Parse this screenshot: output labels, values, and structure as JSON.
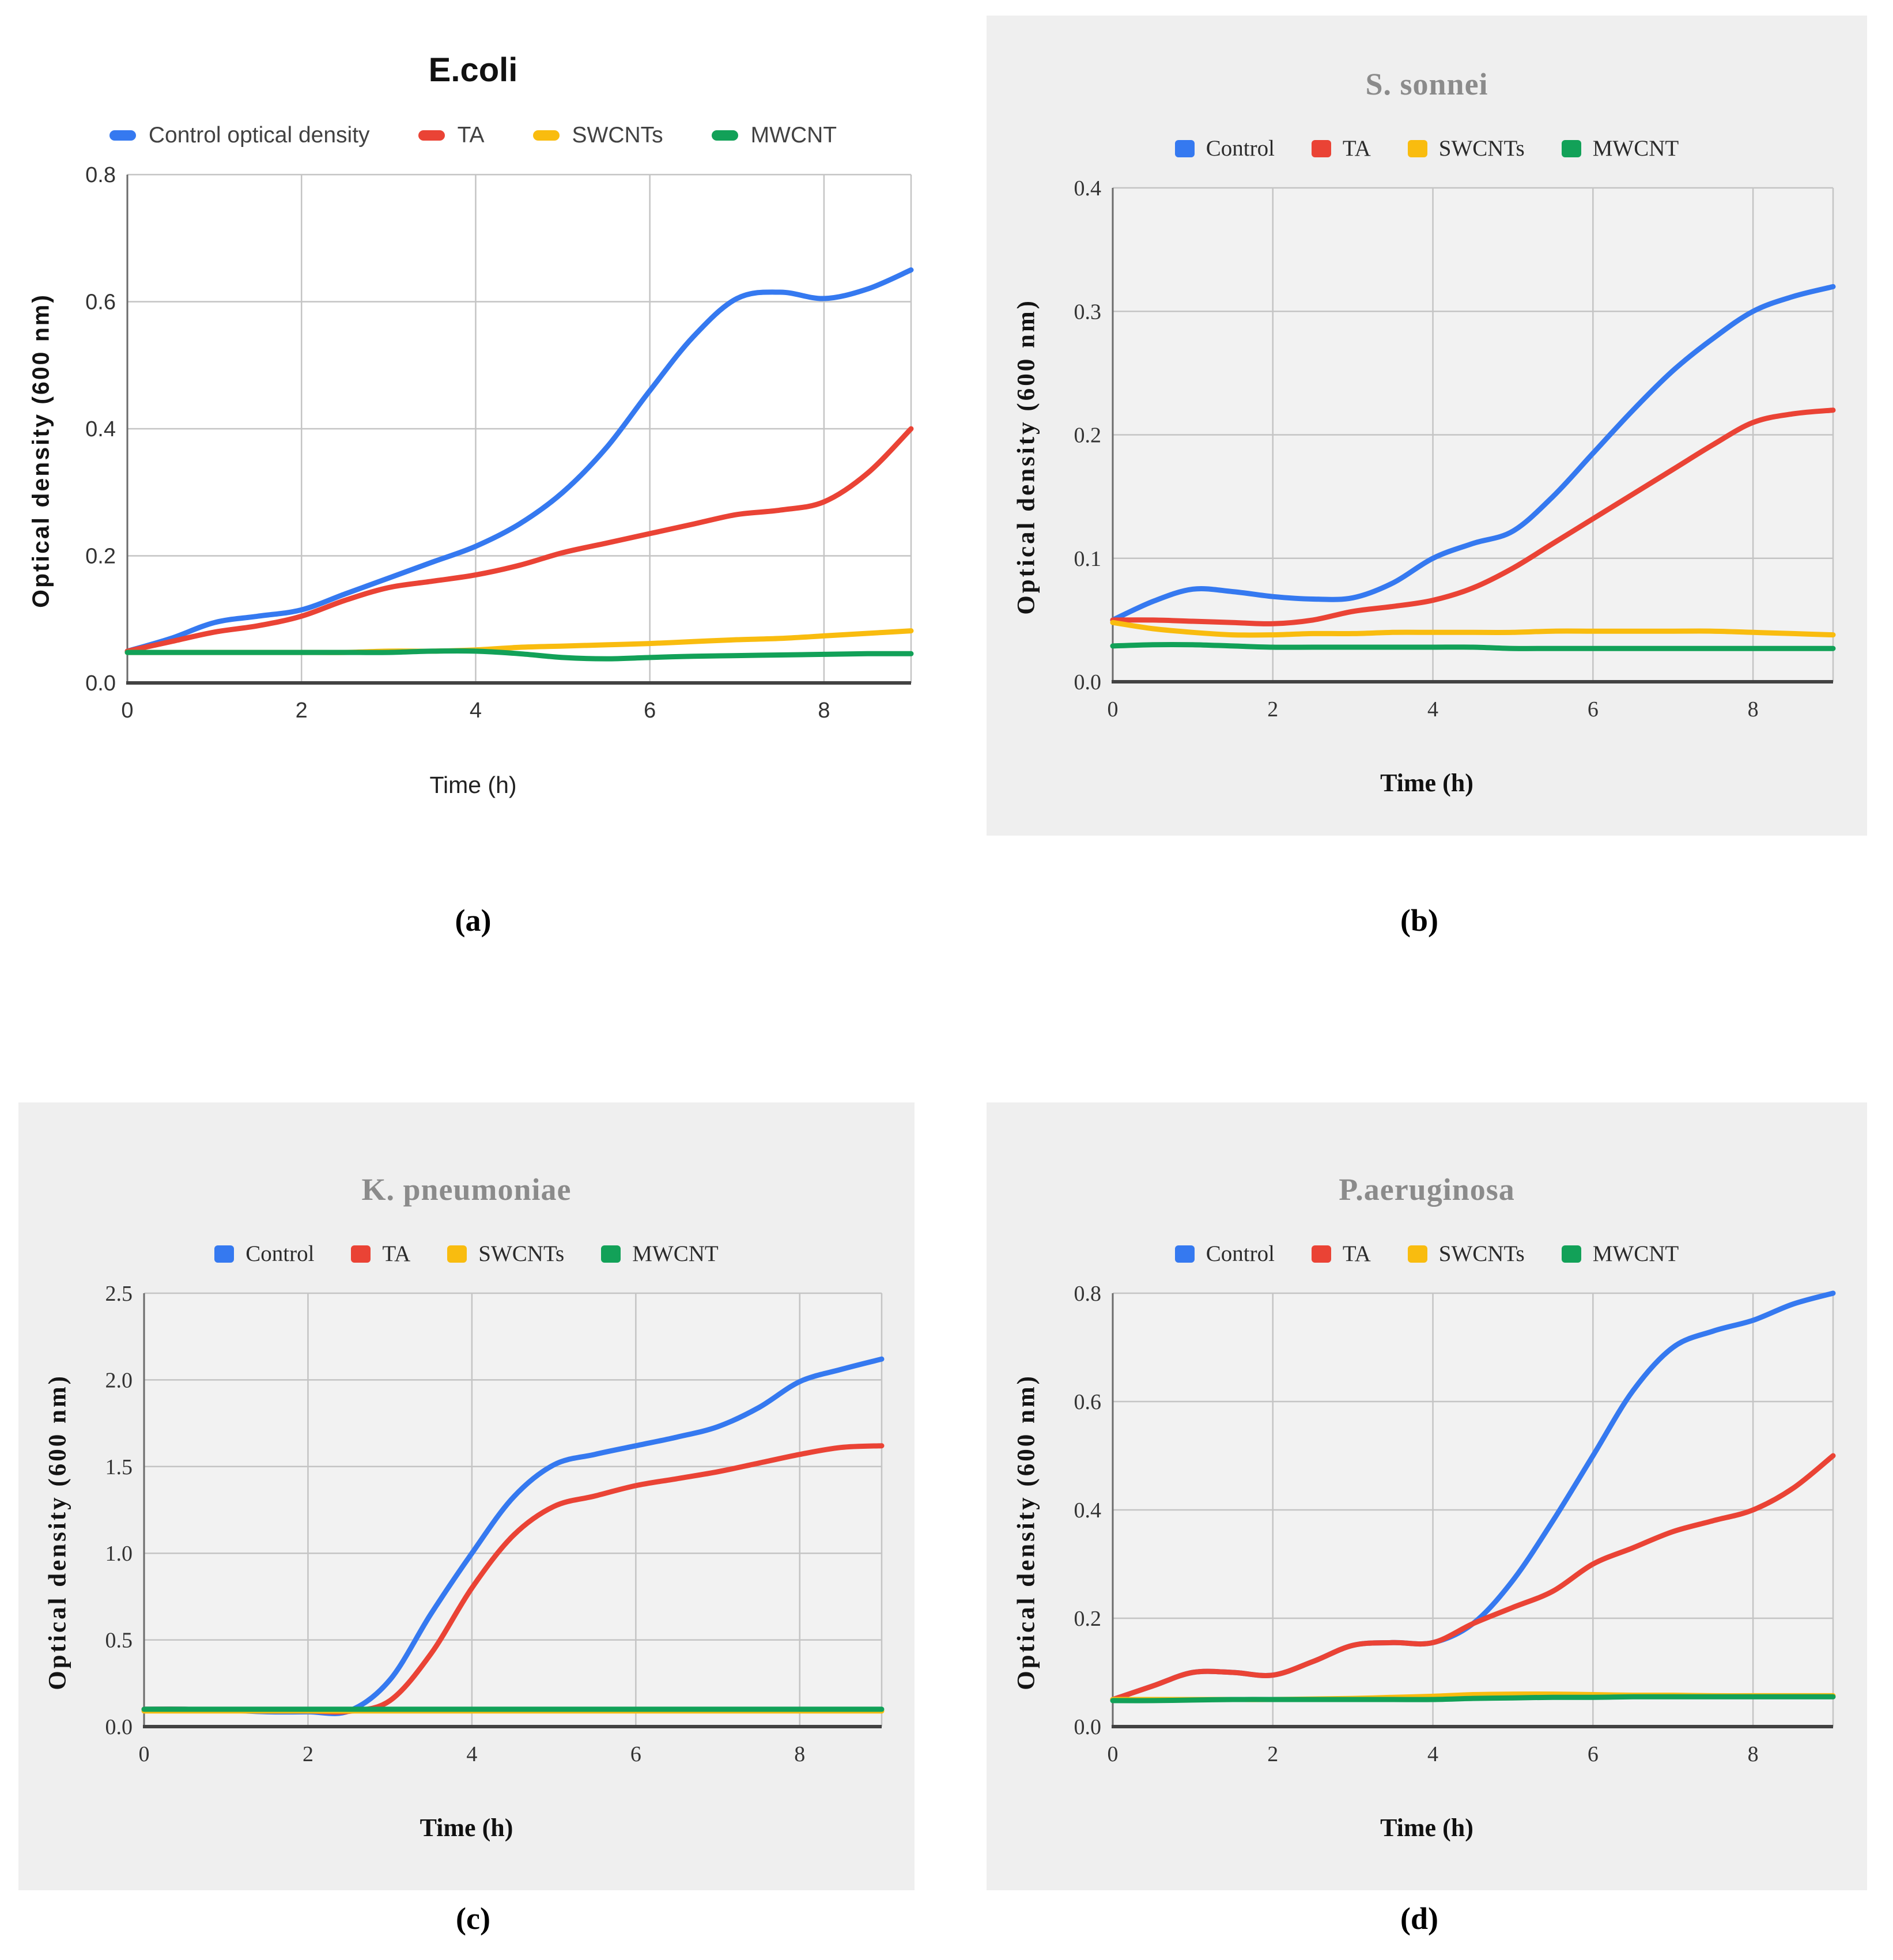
{
  "figure": {
    "captions": [
      "(a)",
      "(b)",
      "(c)",
      "(d)"
    ]
  },
  "colors": {
    "control": "#3579f0",
    "ta": "#ea4335",
    "swcnts": "#f9bc0f",
    "mwcnt": "#12a158",
    "panel_background": "#efefef",
    "plot_background_gray": "#f2f2f2",
    "plot_background_white": "#ffffff",
    "gridline": "#c4c4c4",
    "axis_bottom": "#424242",
    "axis_left": "#6b6b6b",
    "title_gray": "#8b8b8b"
  },
  "chart_data": [
    {
      "type": "line",
      "title": "E.coli",
      "xlabel": "Time (h)",
      "ylabel": "Optical density (600 nm)",
      "xlim": [
        0,
        9
      ],
      "ylim": [
        0,
        0.8
      ],
      "xticks": [
        0,
        2,
        4,
        6,
        8
      ],
      "yticks": [
        0.0,
        0.2,
        0.4,
        0.6,
        0.8
      ],
      "grid": true,
      "legend_position": "top",
      "x": [
        0,
        0.5,
        1,
        1.5,
        2,
        2.5,
        3,
        3.5,
        4,
        4.5,
        5,
        5.5,
        6,
        6.5,
        7,
        7.5,
        8,
        8.5,
        9
      ],
      "series": [
        {
          "name": "Control optical density",
          "color_key": "control",
          "values": [
            0.05,
            0.07,
            0.095,
            0.105,
            0.115,
            0.14,
            0.165,
            0.19,
            0.215,
            0.25,
            0.3,
            0.37,
            0.46,
            0.545,
            0.605,
            0.615,
            0.605,
            0.62,
            0.65
          ]
        },
        {
          "name": "TA",
          "color_key": "ta",
          "values": [
            0.05,
            0.065,
            0.08,
            0.09,
            0.105,
            0.13,
            0.15,
            0.16,
            0.17,
            0.185,
            0.205,
            0.22,
            0.235,
            0.25,
            0.265,
            0.272,
            0.285,
            0.33,
            0.4
          ]
        },
        {
          "name": "SWCNTs",
          "color_key": "swcnts",
          "values": [
            0.048,
            0.048,
            0.048,
            0.048,
            0.048,
            0.048,
            0.05,
            0.05,
            0.052,
            0.056,
            0.058,
            0.06,
            0.062,
            0.065,
            0.068,
            0.07,
            0.074,
            0.078,
            0.082
          ]
        },
        {
          "name": "MWCNT",
          "color_key": "mwcnt",
          "values": [
            0.048,
            0.048,
            0.048,
            0.048,
            0.048,
            0.048,
            0.048,
            0.05,
            0.05,
            0.046,
            0.04,
            0.038,
            0.04,
            0.042,
            0.043,
            0.044,
            0.045,
            0.046,
            0.046
          ]
        }
      ]
    },
    {
      "type": "line",
      "title": "S. sonnei",
      "xlabel": "Time (h)",
      "ylabel": "Optical density (600 nm)",
      "xlim": [
        0,
        9
      ],
      "ylim": [
        0,
        0.4
      ],
      "xticks": [
        0,
        2,
        4,
        6,
        8
      ],
      "yticks": [
        0.0,
        0.1,
        0.2,
        0.3,
        0.4
      ],
      "grid": true,
      "legend_position": "top",
      "x": [
        0,
        0.5,
        1,
        1.5,
        2,
        2.5,
        3,
        3.5,
        4,
        4.5,
        5,
        5.5,
        6,
        6.5,
        7,
        7.5,
        8,
        8.5,
        9
      ],
      "series": [
        {
          "name": "Control",
          "color_key": "control",
          "values": [
            0.05,
            0.065,
            0.075,
            0.073,
            0.069,
            0.067,
            0.068,
            0.08,
            0.1,
            0.112,
            0.122,
            0.15,
            0.185,
            0.22,
            0.252,
            0.278,
            0.3,
            0.312,
            0.32
          ]
        },
        {
          "name": "TA",
          "color_key": "ta",
          "values": [
            0.05,
            0.05,
            0.049,
            0.048,
            0.047,
            0.05,
            0.057,
            0.061,
            0.066,
            0.076,
            0.092,
            0.112,
            0.132,
            0.152,
            0.172,
            0.192,
            0.21,
            0.217,
            0.22
          ]
        },
        {
          "name": "SWCNTs",
          "color_key": "swcnts",
          "values": [
            0.048,
            0.043,
            0.04,
            0.038,
            0.038,
            0.039,
            0.039,
            0.04,
            0.04,
            0.04,
            0.04,
            0.041,
            0.041,
            0.041,
            0.041,
            0.041,
            0.04,
            0.039,
            0.038
          ]
        },
        {
          "name": "MWCNT",
          "color_key": "mwcnt",
          "values": [
            0.029,
            0.03,
            0.03,
            0.029,
            0.028,
            0.028,
            0.028,
            0.028,
            0.028,
            0.028,
            0.027,
            0.027,
            0.027,
            0.027,
            0.027,
            0.027,
            0.027,
            0.027,
            0.027
          ]
        }
      ]
    },
    {
      "type": "line",
      "title": "K. pneumoniae",
      "xlabel": "Time (h)",
      "ylabel": "Optical density (600 nm)",
      "xlim": [
        0,
        9
      ],
      "ylim": [
        0,
        2.5
      ],
      "xticks": [
        0,
        2,
        4,
        6,
        8
      ],
      "yticks": [
        0.0,
        0.5,
        1.0,
        1.5,
        2.0,
        2.5
      ],
      "grid": true,
      "legend_position": "top",
      "x": [
        0,
        0.5,
        1,
        1.5,
        2,
        2.5,
        3,
        3.5,
        4,
        4.5,
        5,
        5.5,
        6,
        6.5,
        7,
        7.5,
        8,
        8.5,
        9
      ],
      "series": [
        {
          "name": "Control",
          "color_key": "control",
          "values": [
            0.1,
            0.1,
            0.095,
            0.085,
            0.085,
            0.09,
            0.27,
            0.65,
            1.0,
            1.32,
            1.51,
            1.57,
            1.62,
            1.67,
            1.73,
            1.84,
            1.99,
            2.06,
            2.12
          ]
        },
        {
          "name": "TA",
          "color_key": "ta",
          "values": [
            0.1,
            0.1,
            0.095,
            0.09,
            0.09,
            0.088,
            0.15,
            0.42,
            0.8,
            1.1,
            1.27,
            1.33,
            1.39,
            1.43,
            1.47,
            1.52,
            1.57,
            1.61,
            1.62
          ]
        },
        {
          "name": "SWCNTs",
          "color_key": "swcnts",
          "values": [
            0.09,
            0.09,
            0.09,
            0.09,
            0.09,
            0.09,
            0.09,
            0.09,
            0.09,
            0.09,
            0.09,
            0.09,
            0.09,
            0.09,
            0.09,
            0.09,
            0.09,
            0.09,
            0.09
          ]
        },
        {
          "name": "MWCNT",
          "color_key": "mwcnt",
          "values": [
            0.1,
            0.1,
            0.1,
            0.1,
            0.1,
            0.1,
            0.1,
            0.1,
            0.1,
            0.1,
            0.1,
            0.1,
            0.1,
            0.1,
            0.1,
            0.1,
            0.1,
            0.1,
            0.1
          ]
        }
      ]
    },
    {
      "type": "line",
      "title": "P.aeruginosa",
      "xlabel": "Time (h)",
      "ylabel": "Optical density (600 nm)",
      "xlim": [
        0,
        9
      ],
      "ylim": [
        0,
        0.8
      ],
      "xticks": [
        0,
        2,
        4,
        6,
        8
      ],
      "yticks": [
        0.0,
        0.2,
        0.4,
        0.6,
        0.8
      ],
      "grid": true,
      "legend_position": "top",
      "x": [
        0,
        0.5,
        1,
        1.5,
        2,
        2.5,
        3,
        3.5,
        4,
        4.5,
        5,
        5.5,
        6,
        6.5,
        7,
        7.5,
        8,
        8.5,
        9
      ],
      "series": [
        {
          "name": "Control",
          "color_key": "control",
          "values": [
            0.05,
            0.075,
            0.1,
            0.1,
            0.095,
            0.12,
            0.15,
            0.155,
            0.155,
            0.19,
            0.27,
            0.38,
            0.5,
            0.62,
            0.7,
            0.73,
            0.75,
            0.78,
            0.8
          ]
        },
        {
          "name": "TA",
          "color_key": "ta",
          "values": [
            0.05,
            0.075,
            0.1,
            0.1,
            0.095,
            0.12,
            0.15,
            0.155,
            0.155,
            0.19,
            0.22,
            0.25,
            0.3,
            0.33,
            0.36,
            0.38,
            0.4,
            0.44,
            0.5
          ]
        },
        {
          "name": "SWCNTs",
          "color_key": "swcnts",
          "values": [
            0.05,
            0.05,
            0.05,
            0.05,
            0.05,
            0.051,
            0.052,
            0.054,
            0.056,
            0.059,
            0.06,
            0.06,
            0.059,
            0.058,
            0.058,
            0.057,
            0.057,
            0.057,
            0.057
          ]
        },
        {
          "name": "MWCNT",
          "color_key": "mwcnt",
          "values": [
            0.048,
            0.048,
            0.049,
            0.05,
            0.05,
            0.05,
            0.05,
            0.05,
            0.05,
            0.052,
            0.053,
            0.054,
            0.054,
            0.055,
            0.055,
            0.055,
            0.055,
            0.055,
            0.055
          ]
        }
      ]
    }
  ]
}
